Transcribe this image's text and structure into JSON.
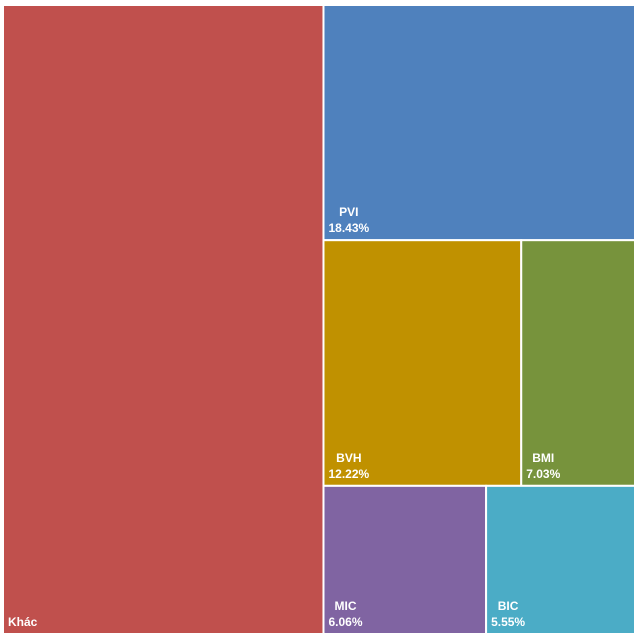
{
  "chart_data": {
    "type": "treemap",
    "categories": [
      "Khác",
      "PVI",
      "BVH",
      "BMI",
      "MIC",
      "BIC"
    ],
    "values": [
      50.71,
      18.43,
      12.22,
      7.03,
      6.06,
      5.55
    ],
    "value_labels": [
      null,
      "18.43%",
      "12.22%",
      "7.03%",
      "6.06%",
      "5.55%"
    ],
    "colors": [
      "#c0504d",
      "#4f81bd",
      "#c09100",
      "#77933c",
      "#8064a2",
      "#4bacc6"
    ]
  }
}
